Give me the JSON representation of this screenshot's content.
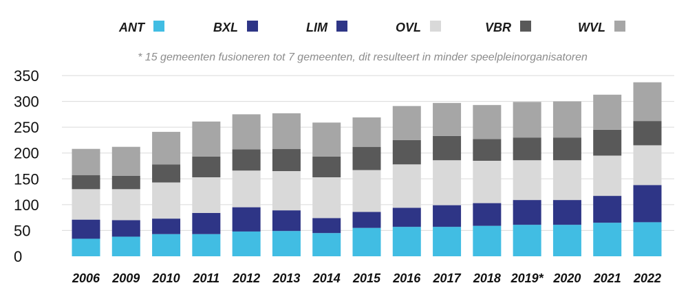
{
  "chart_data": {
    "type": "bar",
    "stacked": true,
    "note": "* 15 gemeenten fusioneren tot 7 gemeenten, dit resulteert in minder speelpleinorganisatoren",
    "categories": [
      "2006",
      "2009",
      "2010",
      "2011",
      "2012",
      "2013",
      "2014",
      "2015",
      "2016",
      "2017",
      "2018",
      "2019*",
      "2020",
      "2021",
      "2022"
    ],
    "ylim": [
      0,
      350
    ],
    "yticks": [
      0,
      50,
      100,
      150,
      200,
      250,
      300,
      350
    ],
    "grid": true,
    "legend_position": "top",
    "series": [
      {
        "name": "ANT",
        "color": "#41bde3",
        "values": [
          34,
          38,
          43,
          43,
          48,
          49,
          45,
          55,
          57,
          57,
          59,
          61,
          61,
          65,
          66
        ]
      },
      {
        "name": "BXL",
        "color": "#2e3586",
        "values": [
          37,
          32,
          30,
          41,
          47,
          40,
          29,
          31,
          37,
          42,
          44,
          48,
          48,
          52,
          72
        ]
      },
      {
        "name": "LIM",
        "color": "#2e3586",
        "values": [
          0,
          0,
          0,
          0,
          0,
          0,
          0,
          0,
          0,
          0,
          0,
          0,
          0,
          0,
          0
        ]
      },
      {
        "name": "OVL",
        "color": "#d9d9d9",
        "values": [
          59,
          60,
          70,
          69,
          71,
          76,
          79,
          81,
          84,
          87,
          82,
          77,
          77,
          78,
          77
        ]
      },
      {
        "name": "VBR",
        "color": "#595959",
        "values": [
          27,
          26,
          35,
          40,
          41,
          43,
          40,
          45,
          47,
          47,
          42,
          44,
          44,
          50,
          47
        ]
      },
      {
        "name": "WVL",
        "color": "#a6a6a6",
        "values": [
          51,
          56,
          63,
          68,
          68,
          69,
          66,
          57,
          66,
          64,
          66,
          69,
          70,
          68,
          75
        ]
      }
    ]
  }
}
